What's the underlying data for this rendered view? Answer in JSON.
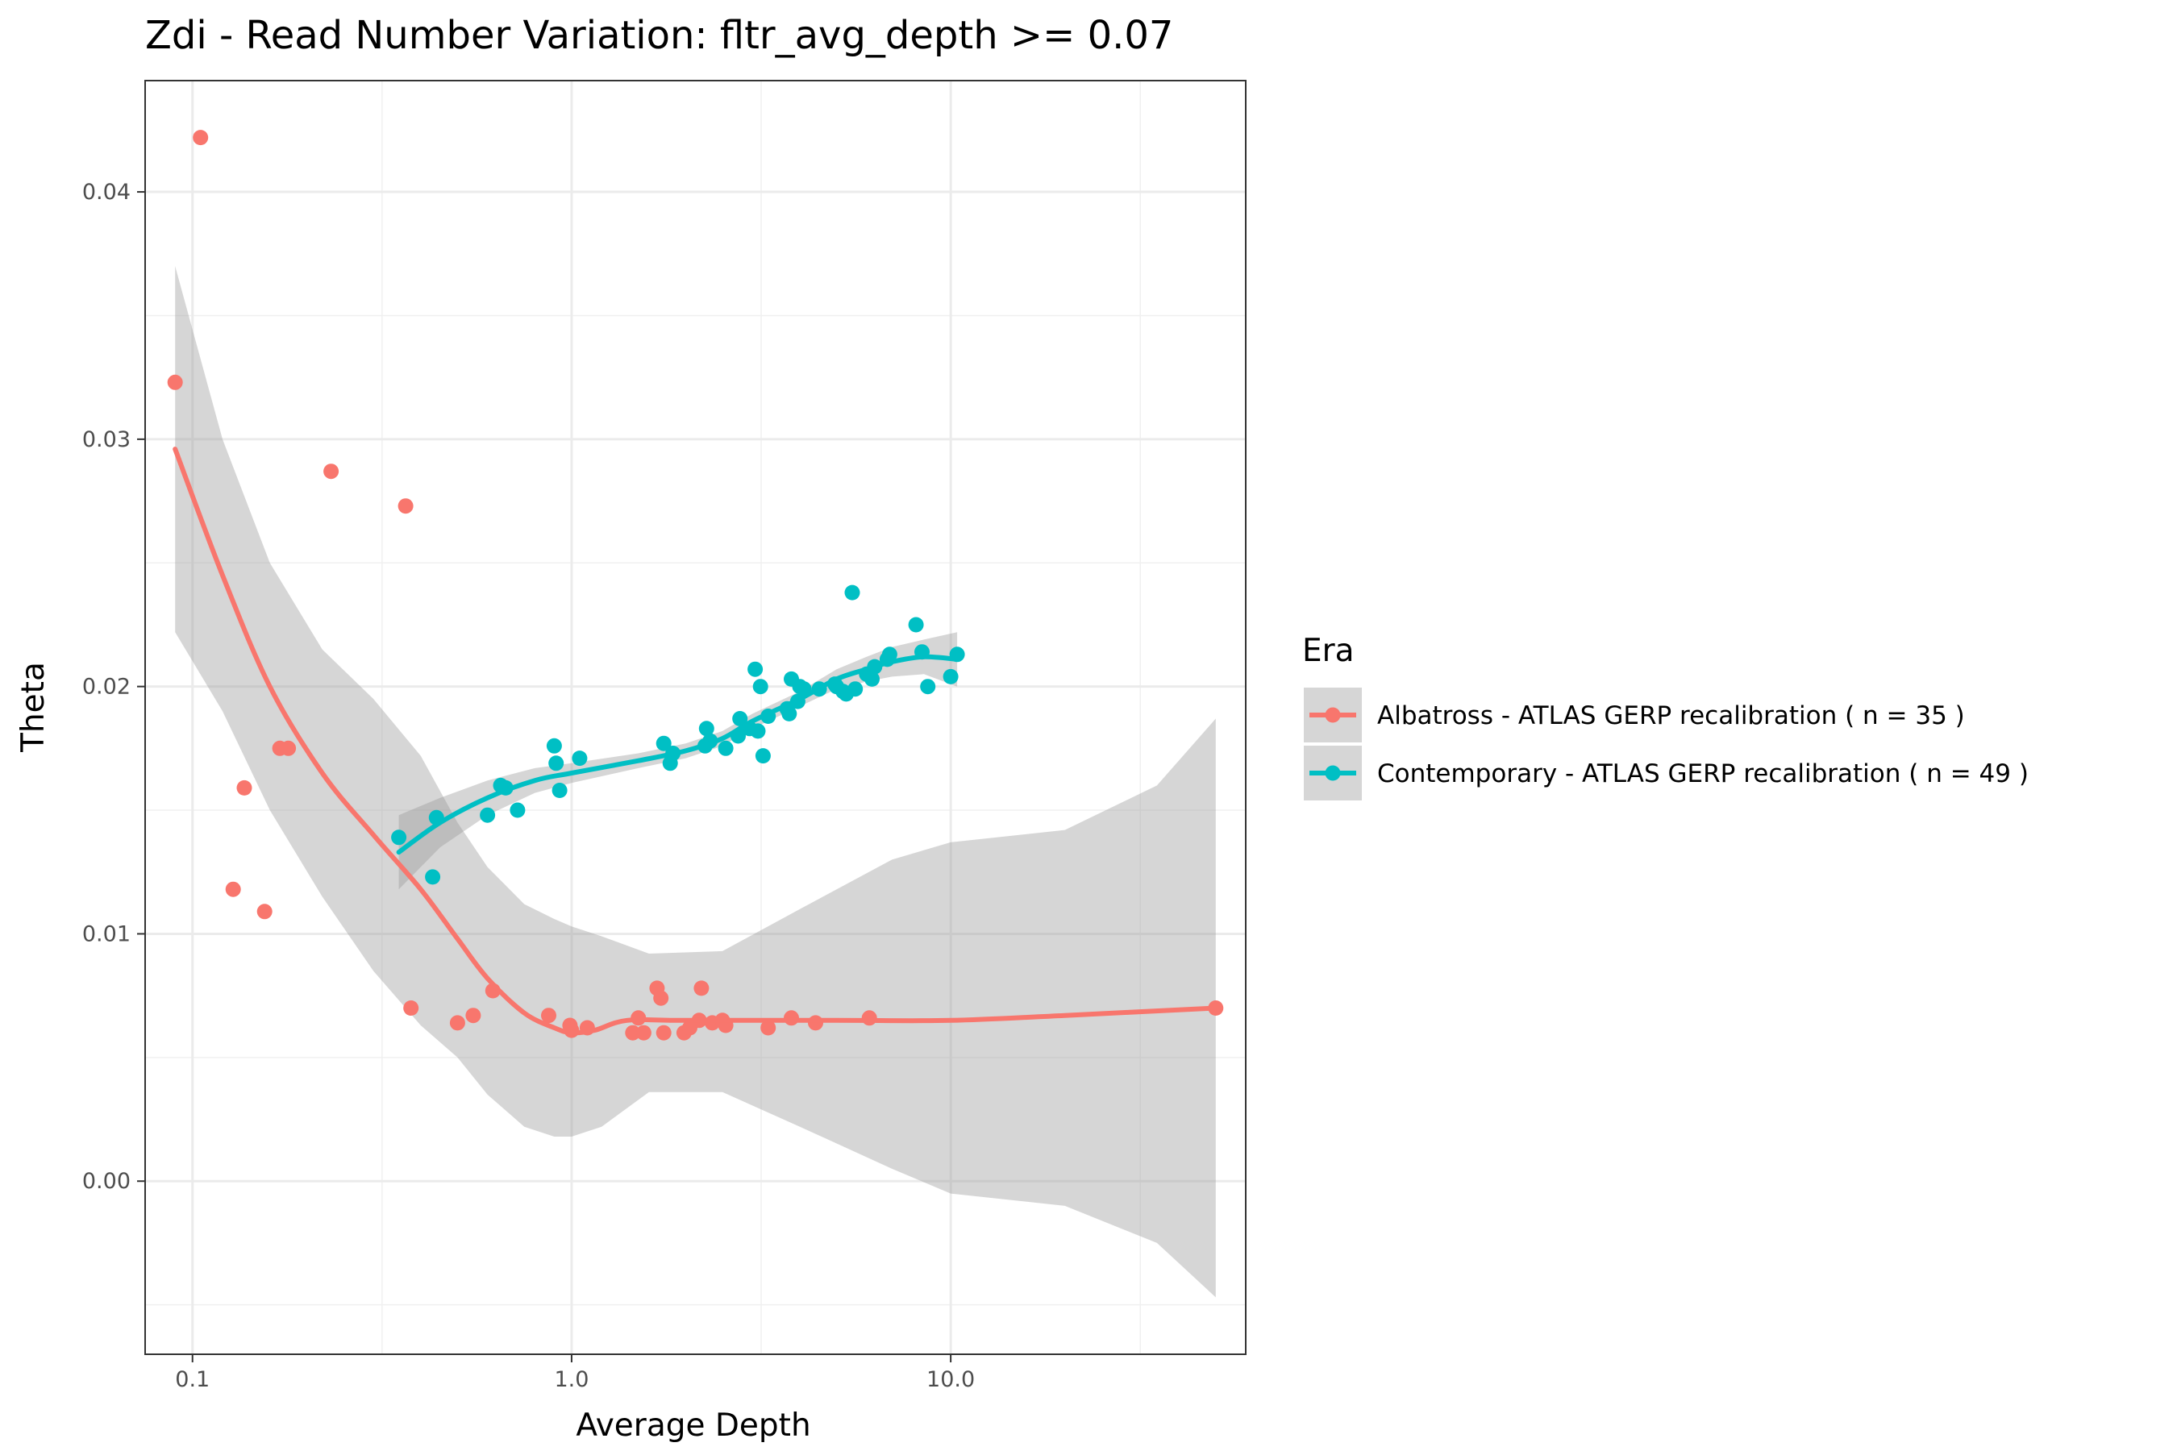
{
  "chart_data": {
    "type": "scatter",
    "title": "Zdi - Read Number Variation: fltr_avg_depth >=  0.07",
    "xlabel": "Average Depth",
    "ylabel": "Theta",
    "x_scale": "log10",
    "xlim": [
      0.075,
      60
    ],
    "ylim": [
      -0.007,
      0.0445
    ],
    "x_ticks": [
      0.1,
      1.0,
      10.0
    ],
    "x_tick_labels": [
      "0.1",
      "1.0",
      "10.0"
    ],
    "y_ticks": [
      0.0,
      0.01,
      0.02,
      0.03,
      0.04
    ],
    "y_tick_labels": [
      "0.00",
      "0.01",
      "0.02",
      "0.03",
      "0.04"
    ],
    "grid": true,
    "legend_title": "Era",
    "legend_position": "right",
    "series": [
      {
        "name": "Albatross - ATLAS GERP recalibration ( n = 35 )",
        "color": "#F8766D",
        "points": [
          [
            0.09,
            0.0323
          ],
          [
            0.105,
            0.0422
          ],
          [
            0.128,
            0.0118
          ],
          [
            0.137,
            0.0159
          ],
          [
            0.155,
            0.0109
          ],
          [
            0.179,
            0.0175
          ],
          [
            0.232,
            0.0287
          ],
          [
            0.365,
            0.0273
          ],
          [
            0.377,
            0.007
          ],
          [
            0.5,
            0.0064
          ],
          [
            0.55,
            0.0067
          ],
          [
            0.62,
            0.0077
          ],
          [
            0.87,
            0.0067
          ],
          [
            0.99,
            0.0063
          ],
          [
            1.0,
            0.0061
          ],
          [
            1.1,
            0.0062
          ],
          [
            1.45,
            0.006
          ],
          [
            1.5,
            0.0066
          ],
          [
            1.55,
            0.006
          ],
          [
            1.68,
            0.0078
          ],
          [
            1.72,
            0.0074
          ],
          [
            1.75,
            0.006
          ],
          [
            1.98,
            0.006
          ],
          [
            2.05,
            0.0062
          ],
          [
            2.17,
            0.0065
          ],
          [
            2.2,
            0.0078
          ],
          [
            2.35,
            0.0064
          ],
          [
            2.5,
            0.0065
          ],
          [
            2.55,
            0.0063
          ],
          [
            3.3,
            0.0062
          ],
          [
            3.8,
            0.0066
          ],
          [
            4.4,
            0.0064
          ],
          [
            6.1,
            0.0066
          ],
          [
            50,
            0.007
          ],
          [
            0.17,
            0.0175
          ]
        ],
        "fit": [
          [
            0.09,
            0.0296
          ],
          [
            0.12,
            0.0245
          ],
          [
            0.16,
            0.02
          ],
          [
            0.22,
            0.0165
          ],
          [
            0.3,
            0.014
          ],
          [
            0.4,
            0.0118
          ],
          [
            0.5,
            0.0098
          ],
          [
            0.6,
            0.0082
          ],
          [
            0.75,
            0.0068
          ],
          [
            0.9,
            0.0062
          ],
          [
            1.0,
            0.006
          ],
          [
            1.15,
            0.0061
          ],
          [
            1.4,
            0.0065
          ],
          [
            2.0,
            0.0065
          ],
          [
            5.0,
            0.0065
          ],
          [
            10,
            0.0065
          ],
          [
            20,
            0.0067
          ],
          [
            50,
            0.007
          ]
        ],
        "ci_upper": [
          [
            0.09,
            0.037
          ],
          [
            0.12,
            0.03
          ],
          [
            0.16,
            0.025
          ],
          [
            0.22,
            0.0215
          ],
          [
            0.3,
            0.0195
          ],
          [
            0.4,
            0.0172
          ],
          [
            0.5,
            0.0145
          ],
          [
            0.6,
            0.0127
          ],
          [
            0.75,
            0.0112
          ],
          [
            0.9,
            0.0106
          ],
          [
            1.0,
            0.0103
          ],
          [
            1.2,
            0.0099
          ],
          [
            1.6,
            0.0092
          ],
          [
            2.5,
            0.0093
          ],
          [
            4.0,
            0.011
          ],
          [
            7.0,
            0.013
          ],
          [
            10,
            0.0137
          ],
          [
            20,
            0.0142
          ],
          [
            35,
            0.016
          ],
          [
            50,
            0.0187
          ]
        ],
        "ci_lower": [
          [
            0.09,
            0.0222
          ],
          [
            0.12,
            0.019
          ],
          [
            0.16,
            0.015
          ],
          [
            0.22,
            0.0115
          ],
          [
            0.3,
            0.0085
          ],
          [
            0.4,
            0.0063
          ],
          [
            0.5,
            0.005
          ],
          [
            0.6,
            0.0035
          ],
          [
            0.75,
            0.0022
          ],
          [
            0.9,
            0.0018
          ],
          [
            1.0,
            0.0018
          ],
          [
            1.2,
            0.0022
          ],
          [
            1.6,
            0.0036
          ],
          [
            2.5,
            0.0036
          ],
          [
            4.0,
            0.0022
          ],
          [
            7.0,
            0.0005
          ],
          [
            10,
            -0.0005
          ],
          [
            20,
            -0.001
          ],
          [
            35,
            -0.0025
          ],
          [
            50,
            -0.0047
          ]
        ]
      },
      {
        "name": "Contemporary - ATLAS GERP recalibration ( n = 49 )",
        "color": "#00BFC4",
        "points": [
          [
            0.35,
            0.0139
          ],
          [
            0.43,
            0.0123
          ],
          [
            0.44,
            0.0147
          ],
          [
            0.6,
            0.0148
          ],
          [
            0.65,
            0.016
          ],
          [
            0.67,
            0.0159
          ],
          [
            0.72,
            0.015
          ],
          [
            0.9,
            0.0176
          ],
          [
            0.91,
            0.0169
          ],
          [
            0.93,
            0.0158
          ],
          [
            1.05,
            0.0171
          ],
          [
            1.75,
            0.0177
          ],
          [
            1.82,
            0.0169
          ],
          [
            1.85,
            0.0173
          ],
          [
            2.25,
            0.0176
          ],
          [
            2.27,
            0.0183
          ],
          [
            2.32,
            0.0178
          ],
          [
            2.55,
            0.0175
          ],
          [
            2.75,
            0.018
          ],
          [
            2.78,
            0.0187
          ],
          [
            2.95,
            0.0183
          ],
          [
            3.05,
            0.0207
          ],
          [
            3.1,
            0.0182
          ],
          [
            3.15,
            0.02
          ],
          [
            3.2,
            0.0172
          ],
          [
            3.3,
            0.0188
          ],
          [
            3.7,
            0.0191
          ],
          [
            3.75,
            0.0189
          ],
          [
            3.8,
            0.0203
          ],
          [
            3.95,
            0.0194
          ],
          [
            4.1,
            0.0199
          ],
          [
            4.5,
            0.0199
          ],
          [
            4.95,
            0.0201
          ],
          [
            5.2,
            0.0198
          ],
          [
            5.3,
            0.0197
          ],
          [
            5.5,
            0.0238
          ],
          [
            5.6,
            0.0199
          ],
          [
            6.2,
            0.0203
          ],
          [
            6.3,
            0.0208
          ],
          [
            6.8,
            0.0211
          ],
          [
            6.9,
            0.0213
          ],
          [
            8.1,
            0.0225
          ],
          [
            8.4,
            0.0214
          ],
          [
            8.7,
            0.02
          ],
          [
            10.0,
            0.0204
          ],
          [
            10.4,
            0.0213
          ],
          [
            4.0,
            0.02
          ],
          [
            5.0,
            0.02
          ],
          [
            6.0,
            0.0205
          ]
        ],
        "fit": [
          [
            0.35,
            0.0133
          ],
          [
            0.45,
            0.0145
          ],
          [
            0.6,
            0.0155
          ],
          [
            0.8,
            0.0162
          ],
          [
            1.0,
            0.0165
          ],
          [
            1.5,
            0.017
          ],
          [
            2.0,
            0.0174
          ],
          [
            2.5,
            0.0179
          ],
          [
            3.0,
            0.0186
          ],
          [
            4.0,
            0.0195
          ],
          [
            5.0,
            0.0203
          ],
          [
            6.0,
            0.0207
          ],
          [
            7.0,
            0.021
          ],
          [
            8.5,
            0.0212
          ],
          [
            10.4,
            0.0211
          ]
        ],
        "ci_upper": [
          [
            0.35,
            0.0148
          ],
          [
            0.45,
            0.0155
          ],
          [
            0.6,
            0.0162
          ],
          [
            0.8,
            0.0167
          ],
          [
            1.0,
            0.0169
          ],
          [
            1.5,
            0.0173
          ],
          [
            2.0,
            0.0177
          ],
          [
            2.5,
            0.0182
          ],
          [
            3.0,
            0.0189
          ],
          [
            4.0,
            0.0198
          ],
          [
            5.0,
            0.0207
          ],
          [
            6.0,
            0.0212
          ],
          [
            7.0,
            0.0216
          ],
          [
            8.5,
            0.0219
          ],
          [
            10.4,
            0.0222
          ]
        ],
        "ci_lower": [
          [
            0.35,
            0.0118
          ],
          [
            0.45,
            0.0135
          ],
          [
            0.6,
            0.0148
          ],
          [
            0.8,
            0.0157
          ],
          [
            1.0,
            0.0161
          ],
          [
            1.5,
            0.0167
          ],
          [
            2.0,
            0.0171
          ],
          [
            2.5,
            0.0176
          ],
          [
            3.0,
            0.0183
          ],
          [
            4.0,
            0.0192
          ],
          [
            5.0,
            0.0199
          ],
          [
            6.0,
            0.0202
          ],
          [
            7.0,
            0.0204
          ],
          [
            8.5,
            0.0205
          ],
          [
            10.4,
            0.02
          ]
        ]
      }
    ]
  }
}
